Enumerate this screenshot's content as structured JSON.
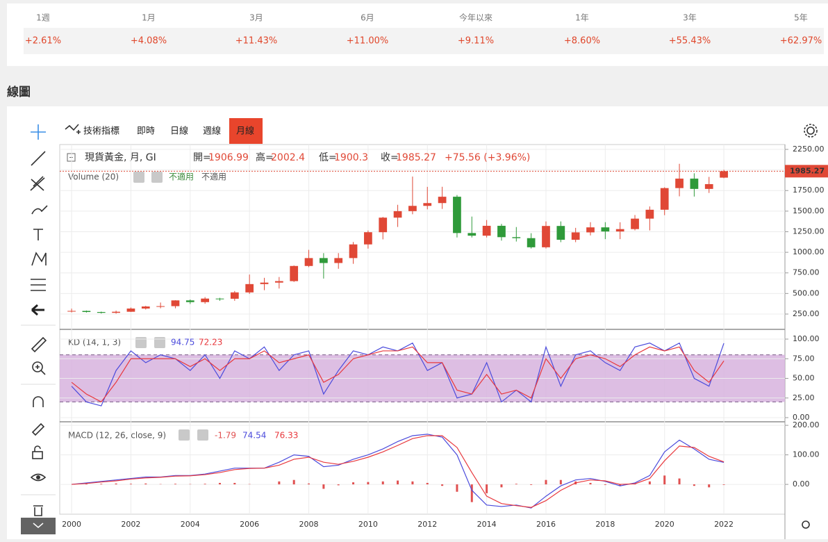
{
  "performance": {
    "periods": [
      "1週",
      "1月",
      "3月",
      "6月",
      "今年以來",
      "1年",
      "3年",
      "5年"
    ],
    "values": [
      "+2.61%",
      "+4.08%",
      "+11.43%",
      "+11.00%",
      "+9.11%",
      "+8.60%",
      "+55.43%",
      "+62.97%"
    ]
  },
  "section_title": "線圖",
  "toolbar": {
    "tabs": [
      "技術指標",
      "即時",
      "日線",
      "週線",
      "月線"
    ],
    "active": 4
  },
  "volume": {
    "title": "Volume (20)",
    "labels": [
      "不適用",
      "不適用"
    ]
  },
  "header": {
    "ohlc_labels": [
      "開=",
      "高=",
      "低=",
      "收="
    ],
    "change_label": "+75.56 (+3.96%)"
  },
  "chart_data": [
    {
      "type": "candlestick",
      "title": "現貨黃金, 月, GI",
      "up_color": "#e04836",
      "down_color": "#2f9a3a",
      "grid": true,
      "x": [
        2000,
        2000.5,
        2001,
        2001.5,
        2002,
        2002.5,
        2003,
        2003.5,
        2004,
        2004.5,
        2005,
        2005.5,
        2006,
        2006.5,
        2007,
        2007.5,
        2008,
        2008.5,
        2009,
        2009.5,
        2010,
        2010.5,
        2011,
        2011.5,
        2012,
        2012.5,
        2013,
        2013.5,
        2014,
        2014.5,
        2015,
        2015.5,
        2016,
        2016.5,
        2017,
        2017.5,
        2018,
        2018.5,
        2019,
        2019.5,
        2020,
        2020.5,
        2021,
        2021.5,
        2022
      ],
      "open": [
        282,
        288,
        275,
        265,
        278,
        317,
        342,
        346,
        416,
        395,
        438,
        436,
        513,
        614,
        632,
        650,
        834,
        930,
        870,
        930,
        1096,
        1244,
        1421,
        1500,
        1564,
        1598,
        1675,
        1234,
        1202,
        1322,
        1184,
        1172,
        1061,
        1320,
        1152,
        1242,
        1303,
        1253,
        1282,
        1409,
        1517,
        1780,
        1895,
        1770,
        1906.99
      ],
      "high": [
        316,
        293,
        280,
        292,
        330,
        350,
        390,
        418,
        427,
        456,
        447,
        530,
        730,
        690,
        700,
        840,
        1030,
        990,
        990,
        1125,
        1265,
        1430,
        1577,
        1920,
        1795,
        1796,
        1696,
        1434,
        1392,
        1345,
        1307,
        1232,
        1375,
        1375,
        1297,
        1366,
        1366,
        1365,
        1453,
        1557,
        1790,
        2075,
        1960,
        1916,
        2002.4
      ],
      "low": [
        270,
        268,
        256,
        255,
        276,
        305,
        320,
        320,
        372,
        375,
        411,
        411,
        495,
        540,
        560,
        640,
        820,
        681,
        800,
        860,
        1045,
        1157,
        1308,
        1462,
        1522,
        1527,
        1180,
        1180,
        1180,
        1142,
        1131,
        1046,
        1046,
        1123,
        1123,
        1205,
        1160,
        1160,
        1266,
        1266,
        1451,
        1680,
        1677,
        1721,
        1900.3
      ],
      "close": [
        288,
        275,
        265,
        278,
        317,
        342,
        346,
        416,
        395,
        438,
        436,
        513,
        614,
        632,
        650,
        834,
        930,
        870,
        930,
        1096,
        1244,
        1421,
        1500,
        1564,
        1598,
        1675,
        1234,
        1202,
        1322,
        1184,
        1172,
        1061,
        1320,
        1152,
        1242,
        1303,
        1253,
        1282,
        1409,
        1517,
        1780,
        1895,
        1770,
        1828,
        1985.27
      ],
      "xlim": [
        1999.6,
        2024.06
      ],
      "xticks": [
        2000,
        2002,
        2004,
        2006,
        2008,
        2010,
        2012,
        2014,
        2016,
        2018,
        2020,
        2022
      ],
      "ylim": [
        64,
        2309
      ],
      "yticks": [
        {
          "value": 250,
          "label": "250.00"
        },
        {
          "value": 500,
          "label": "500.00"
        },
        {
          "value": 750,
          "label": "750.00"
        },
        {
          "value": 1000,
          "label": "1000.00"
        },
        {
          "value": 1250,
          "label": "1250.00"
        },
        {
          "value": 1500,
          "label": "1500.00"
        },
        {
          "value": 1750,
          "label": "1750.00"
        },
        {
          "value": 2000,
          "label": "2000.00"
        },
        {
          "value": 2250,
          "label": "2250.00"
        }
      ]
    },
    {
      "type": "line",
      "title": "KD (14, 1, 3)",
      "grid": true,
      "band": [
        20,
        80
      ],
      "band_color": "#d7b3de",
      "x": [
        2000,
        2000.5,
        2001,
        2001.5,
        2002,
        2002.5,
        2003,
        2003.5,
        2004,
        2004.5,
        2005,
        2005.5,
        2006,
        2006.5,
        2007,
        2007.5,
        2008,
        2008.5,
        2009,
        2009.5,
        2010,
        2010.5,
        2011,
        2011.5,
        2012,
        2012.5,
        2013,
        2013.5,
        2014,
        2014.5,
        2015,
        2015.5,
        2016,
        2016.5,
        2017,
        2017.5,
        2018,
        2018.5,
        2019,
        2019.5,
        2020,
        2020.5,
        2021,
        2021.5,
        2022
      ],
      "series": [
        {
          "color": "#4b4bdc",
          "values": [
            40,
            20,
            15,
            60,
            85,
            70,
            80,
            75,
            60,
            80,
            50,
            85,
            75,
            90,
            60,
            80,
            85,
            30,
            60,
            85,
            80,
            90,
            85,
            95,
            60,
            70,
            25,
            30,
            70,
            20,
            35,
            20,
            90,
            40,
            80,
            85,
            70,
            60,
            90,
            95,
            85,
            95,
            50,
            40,
            94.75
          ]
        },
        {
          "color": "#e8383d",
          "values": [
            45,
            30,
            20,
            45,
            75,
            75,
            75,
            75,
            65,
            75,
            60,
            75,
            75,
            85,
            70,
            75,
            80,
            45,
            55,
            75,
            80,
            85,
            85,
            90,
            70,
            70,
            35,
            30,
            55,
            30,
            35,
            25,
            75,
            50,
            75,
            80,
            75,
            65,
            80,
            90,
            85,
            90,
            60,
            45,
            72.23
          ]
        }
      ],
      "xlim": [
        1999.6,
        2024.06
      ],
      "ylim": [
        -5.3,
        112.4
      ],
      "yticks": [
        {
          "value": 0,
          "label": "0.00"
        },
        {
          "value": 25,
          "label": "25.00"
        },
        {
          "value": 50,
          "label": "50.00"
        },
        {
          "value": 75,
          "label": "75.00"
        },
        {
          "value": 100,
          "label": "100.00"
        }
      ]
    },
    {
      "type": "line",
      "title": "MACD (12, 26, close, 9)",
      "grid": true,
      "x": [
        2000,
        2000.5,
        2001,
        2001.5,
        2002,
        2002.5,
        2003,
        2003.5,
        2004,
        2004.5,
        2005,
        2005.5,
        2006,
        2006.5,
        2007,
        2007.5,
        2008,
        2008.5,
        2009,
        2009.5,
        2010,
        2010.5,
        2011,
        2011.5,
        2012,
        2012.5,
        2013,
        2013.5,
        2014,
        2014.5,
        2015,
        2015.5,
        2016,
        2016.5,
        2017,
        2017.5,
        2018,
        2018.5,
        2019,
        2019.5,
        2020,
        2020.5,
        2021,
        2021.5,
        2022
      ],
      "series": [
        {
          "style": "bar",
          "color": "#e05050",
          "values": [
            0,
            2,
            2,
            3,
            2,
            3,
            1,
            2,
            1,
            2,
            5,
            5,
            1,
            0,
            10,
            15,
            3,
            -15,
            -3,
            7,
            8,
            10,
            13,
            10,
            5,
            -5,
            -25,
            -60,
            -30,
            -10,
            2,
            -2,
            15,
            15,
            10,
            5,
            -2,
            -5,
            3,
            10,
            30,
            20,
            -5,
            -10,
            -1.79
          ]
        },
        {
          "color": "#4b4bdc",
          "values": [
            0,
            5,
            10,
            15,
            20,
            25,
            25,
            30,
            30,
            35,
            45,
            55,
            55,
            55,
            75,
            100,
            95,
            60,
            65,
            85,
            100,
            120,
            145,
            165,
            170,
            160,
            100,
            -20,
            -70,
            -75,
            -70,
            -80,
            -40,
            -5,
            15,
            20,
            10,
            -5,
            5,
            30,
            110,
            150,
            120,
            85,
            74.54
          ]
        },
        {
          "color": "#e8383d",
          "values": [
            0,
            3,
            8,
            12,
            18,
            22,
            24,
            28,
            29,
            33,
            40,
            50,
            54,
            55,
            65,
            85,
            92,
            75,
            68,
            78,
            92,
            110,
            132,
            155,
            165,
            165,
            125,
            40,
            -40,
            -65,
            -72,
            -78,
            -55,
            -20,
            5,
            15,
            12,
            0,
            2,
            20,
            80,
            130,
            125,
            95,
            76.33
          ]
        }
      ],
      "xlim": [
        1999.6,
        2024.06
      ],
      "ylim": [
        -101,
        212
      ],
      "yticks": [
        {
          "value": 0,
          "label": "0.00"
        },
        {
          "value": 100,
          "label": "100.00"
        },
        {
          "value": 200,
          "label": "200.00"
        }
      ]
    }
  ]
}
